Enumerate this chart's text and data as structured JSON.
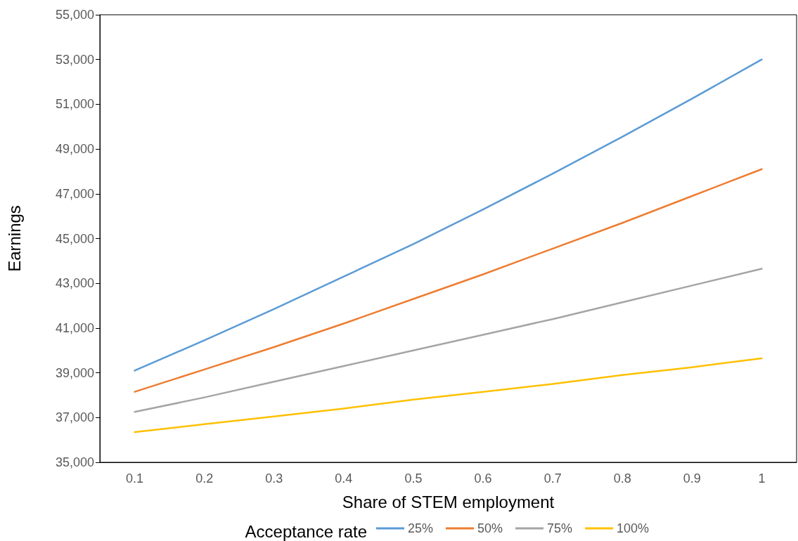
{
  "chart_data": {
    "type": "line",
    "xlabel": "Share of STEM employment",
    "ylabel": "Earnings",
    "legend_title": "Acceptance rate",
    "categories": [
      "0.1",
      "0.2",
      "0.3",
      "0.4",
      "0.5",
      "0.6",
      "0.7",
      "0.8",
      "0.9",
      "1"
    ],
    "series": [
      {
        "name": "25%",
        "color": "#5b9bd5",
        "values": [
          39100,
          40450,
          41850,
          43300,
          44750,
          46300,
          47900,
          49550,
          51250,
          53000
        ]
      },
      {
        "name": "50%",
        "color": "#ed7d31",
        "values": [
          38150,
          39150,
          40150,
          41200,
          42300,
          43400,
          44550,
          45700,
          46900,
          48100
        ]
      },
      {
        "name": "75%",
        "color": "#a5a5a5",
        "values": [
          37250,
          37900,
          38600,
          39300,
          40000,
          40700,
          41400,
          42150,
          42900,
          43650
        ]
      },
      {
        "name": "100%",
        "color": "#ffc000",
        "values": [
          36350,
          36700,
          37050,
          37400,
          37800,
          38150,
          38500,
          38900,
          39250,
          39650
        ]
      }
    ],
    "ylim": [
      35000,
      55000
    ],
    "yticks": [
      {
        "value": 35000,
        "label": "35,000"
      },
      {
        "value": 37000,
        "label": "37,000"
      },
      {
        "value": 39000,
        "label": "39,000"
      },
      {
        "value": 41000,
        "label": "41,000"
      },
      {
        "value": 43000,
        "label": "43,000"
      },
      {
        "value": 45000,
        "label": "45,000"
      },
      {
        "value": 47000,
        "label": "47,000"
      },
      {
        "value": 49000,
        "label": "49,000"
      },
      {
        "value": 51000,
        "label": "51,000"
      },
      {
        "value": 53000,
        "label": "53,000"
      },
      {
        "value": 55000,
        "label": "55,000"
      }
    ],
    "grid": false,
    "legend": "bottom",
    "marker": "none",
    "line_style": "solid"
  }
}
